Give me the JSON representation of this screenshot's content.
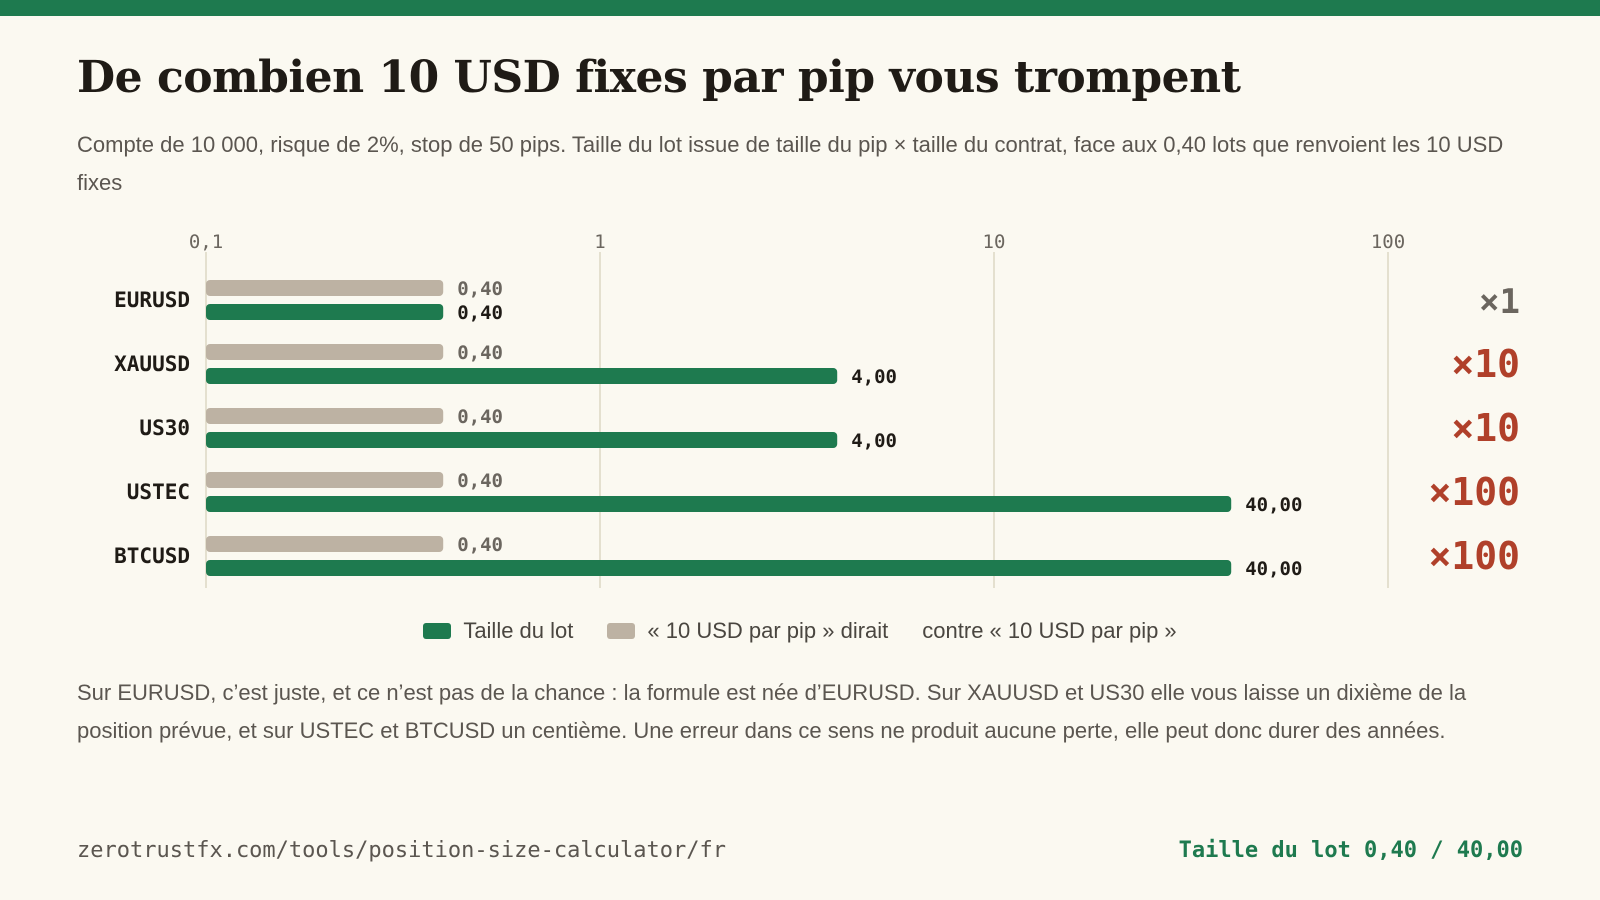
{
  "header": {
    "title": "De combien 10 USD fixes par pip vous trompent",
    "subtitle": "Compte de 10 000, risque de 2%, stop de 50 pips. Taille du lot issue de taille du pip × taille du contrat, face aux 0,40 lots que renvoient les 10 USD fixes"
  },
  "colors": {
    "accent": "#1e7a4f",
    "naive": "#bdb2a3",
    "warning": "#b0402a",
    "neutral": "#6b665f",
    "grid": "#ddd8c4"
  },
  "legend": {
    "lot_size": "Taille du lot",
    "naive": "« 10 USD par pip » dirait",
    "ratio": "contre « 10 USD par pip »"
  },
  "chart_data": {
    "type": "bar",
    "orientation": "horizontal",
    "x_scale": "log",
    "xlim": [
      0.1,
      100
    ],
    "x_ticks": [
      {
        "value": 0.1,
        "label": "0,1"
      },
      {
        "value": 1,
        "label": "1"
      },
      {
        "value": 10,
        "label": "10"
      },
      {
        "value": 100,
        "label": "100"
      }
    ],
    "categories": [
      "EURUSD",
      "XAUUSD",
      "US30",
      "USTEC",
      "BTCUSD"
    ],
    "series": [
      {
        "name": "« 10 USD par pip » dirait",
        "values": [
          0.4,
          0.4,
          0.4,
          0.4,
          0.4
        ],
        "labels": [
          "0,40",
          "0,40",
          "0,40",
          "0,40",
          "0,40"
        ]
      },
      {
        "name": "Taille du lot",
        "values": [
          0.4,
          4.0,
          4.0,
          40.0,
          40.0
        ],
        "labels": [
          "0,40",
          "4,00",
          "4,00",
          "40,00",
          "40,00"
        ]
      }
    ],
    "ratios": [
      "×1",
      "×10",
      "×10",
      "×100",
      "×100"
    ],
    "grid": true,
    "legend_position": "bottom-center"
  },
  "note": "Sur EURUSD, c’est juste, et ce n’est pas de la chance : la formule est née d’EURUSD. Sur XAUUSD et US30 elle vous laisse un dixième de la position prévue, et sur USTEC et BTCUSD un centième. Une erreur dans ce sens ne produit aucune perte, elle peut donc durer des années.",
  "footer": {
    "url": "zerotrustfx.com/tools/position-size-calculator/fr",
    "summary": "Taille du lot 0,40 / 40,00"
  }
}
